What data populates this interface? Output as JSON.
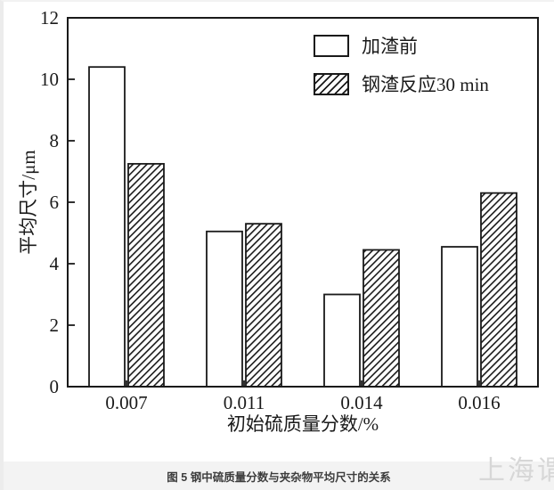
{
  "chart_data": {
    "type": "bar",
    "categories": [
      "0.007",
      "0.011",
      "0.014",
      "0.016"
    ],
    "series": [
      {
        "name": "加渣前",
        "style": "white",
        "values": [
          10.4,
          5.05,
          3.0,
          4.55
        ]
      },
      {
        "name": "钢渣反应30 min",
        "style": "hatched",
        "values": [
          7.25,
          5.3,
          4.45,
          6.3
        ]
      }
    ],
    "title": "",
    "xlabel": "初始硫质量分数/%",
    "ylabel": "平均尺寸/μm",
    "ylim": [
      0,
      12
    ],
    "ytick_step": 2,
    "grid": false,
    "legend_position": "top-right"
  },
  "caption": "图 5 钢中硫质量分数与夹杂物平均尺寸的关系",
  "watermark": "上海谓",
  "colors": {
    "axis": "#1a1a1a",
    "bar_fill": "#ffffff",
    "hatch": "#1a1a1a",
    "caption_bg": "#f3f3f3",
    "caption_text": "#3d3d3d",
    "watermark": "#d7d7d7"
  }
}
